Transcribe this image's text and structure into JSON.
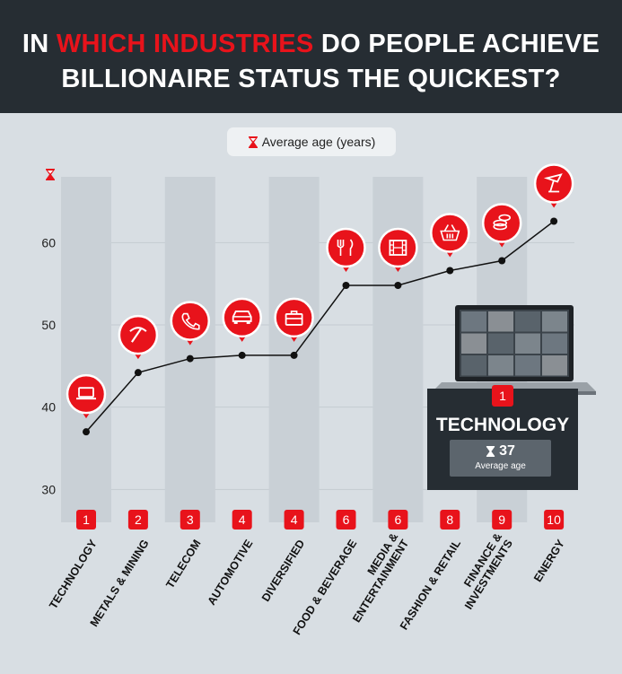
{
  "title": {
    "line1_a": "IN ",
    "line1_hl": "WHICH INDUSTRIES",
    "line1_b": " DO PEOPLE ACHIEVE",
    "line2": "BILLIONAIRE STATUS THE QUICKEST?"
  },
  "legend": {
    "label": "Average age (years)",
    "icon": "hourglass-icon"
  },
  "colors": {
    "accent": "#e8131b",
    "dark": "#262d33",
    "background": "#d8dee3",
    "column": "#c9d0d6",
    "card_box": "#5c656d"
  },
  "chart_data": {
    "type": "line",
    "categories": [
      "TECHNOLOGY",
      "METALS & MINING",
      "TELECOM",
      "AUTOMOTIVE",
      "DIVERSIFIED",
      "FOOD & BEVERAGE",
      "MEDIA & ENTERTAINMENT",
      "FASHION & RETAIL",
      "FINANCE & INVESTMENTS",
      "ENERGY"
    ],
    "category_lines": [
      [
        "TECHNOLOGY"
      ],
      [
        "METALS & MINING"
      ],
      [
        "TELECOM"
      ],
      [
        "AUTOMOTIVE"
      ],
      [
        "DIVERSIFIED"
      ],
      [
        "FOOD & BEVERAGE"
      ],
      [
        "MEDIA &",
        "ENTERTAINMENT"
      ],
      [
        "FASHION & RETAIL"
      ],
      [
        "FINANCE &",
        "INVESTMENTS"
      ],
      [
        "ENERGY"
      ]
    ],
    "ranks": [
      "1",
      "2",
      "3",
      "4",
      "4",
      "6",
      "6",
      "8",
      "9",
      "10"
    ],
    "icons": [
      "laptop-icon",
      "pickaxe-icon",
      "phone-icon",
      "car-icon",
      "briefcase-icon",
      "cutlery-icon",
      "film-icon",
      "basket-icon",
      "coins-icon",
      "oil-rig-icon"
    ],
    "values": [
      37,
      44.2,
      45.9,
      46.3,
      46.3,
      54.8,
      54.8,
      56.6,
      57.8,
      62.6
    ],
    "y_ticks": [
      "60",
      "50",
      "40",
      "30"
    ],
    "ylim": [
      26,
      68
    ],
    "grid": true
  },
  "highlight": {
    "rank": "1",
    "name": "TECHNOLOGY",
    "value": "37",
    "value_label": "Average age"
  }
}
